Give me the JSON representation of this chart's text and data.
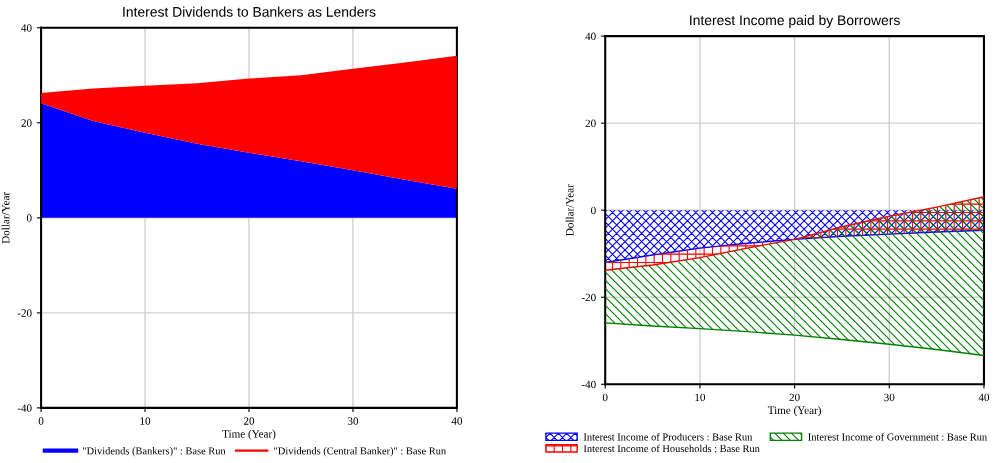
{
  "chart_data": [
    {
      "type": "area",
      "stacked": true,
      "title": "Interest Dividends to Bankers as Lenders",
      "xlabel": "Time (Year)",
      "ylabel": "Dollar/Year",
      "x": [
        0,
        5,
        10,
        15,
        20,
        25,
        30,
        35,
        40
      ],
      "series": [
        {
          "name": "\"Dividends (Bankers)\" : Base Run",
          "color": "#0000ff",
          "values": [
            24.1,
            20.4,
            17.9,
            15.6,
            13.7,
            11.9,
            10.0,
            8.0,
            6.1
          ]
        },
        {
          "name": "\"Dividends (Central Banker)\" : Base Run",
          "color": "#ff0000",
          "values": [
            2.2,
            6.8,
            9.9,
            12.7,
            15.6,
            18.1,
            21.4,
            24.7,
            28.0
          ]
        }
      ],
      "xlim": [
        0,
        40
      ],
      "xticks": [
        0,
        10,
        20,
        30,
        40
      ],
      "ylim": [
        -40,
        40
      ],
      "yticks": [
        -40,
        -20,
        0,
        20,
        40
      ],
      "grid": true,
      "legend": "bottom"
    },
    {
      "type": "area",
      "stacked": true,
      "title": "Interest Income paid by Borrowers",
      "xlabel": "Time (Year)",
      "ylabel": "Dollar/Year",
      "x": [
        0,
        5,
        10,
        15,
        20,
        25,
        30,
        35,
        40
      ],
      "series": [
        {
          "name": "Interest Income of Producers : Base Run",
          "color": "#0000ff",
          "values": [
            -12.0,
            -10.3,
            -8.7,
            -7.6,
            -6.7,
            -6.0,
            -5.5,
            -5.0,
            -4.6
          ]
        },
        {
          "name": "Interest Income of Households : Base Run",
          "color": "#ff0000",
          "values": [
            -1.8,
            -2.3,
            -2.2,
            -1.1,
            0,
            2.2,
            4.1,
            5.7,
            7.7
          ]
        },
        {
          "name": "Interest Income of Government : Base Run",
          "color": "#008000",
          "values": [
            -12.1,
            -14.0,
            -16.3,
            -19.2,
            -22.0,
            -25.9,
            -29.4,
            -32.7,
            -36.5
          ]
        }
      ],
      "xlim": [
        0,
        40
      ],
      "xticks": [
        0,
        10,
        20,
        30,
        40
      ],
      "ylim": [
        -40,
        40
      ],
      "yticks": [
        -40,
        -20,
        0,
        20,
        40
      ],
      "grid": true,
      "legend": "bottom"
    }
  ]
}
